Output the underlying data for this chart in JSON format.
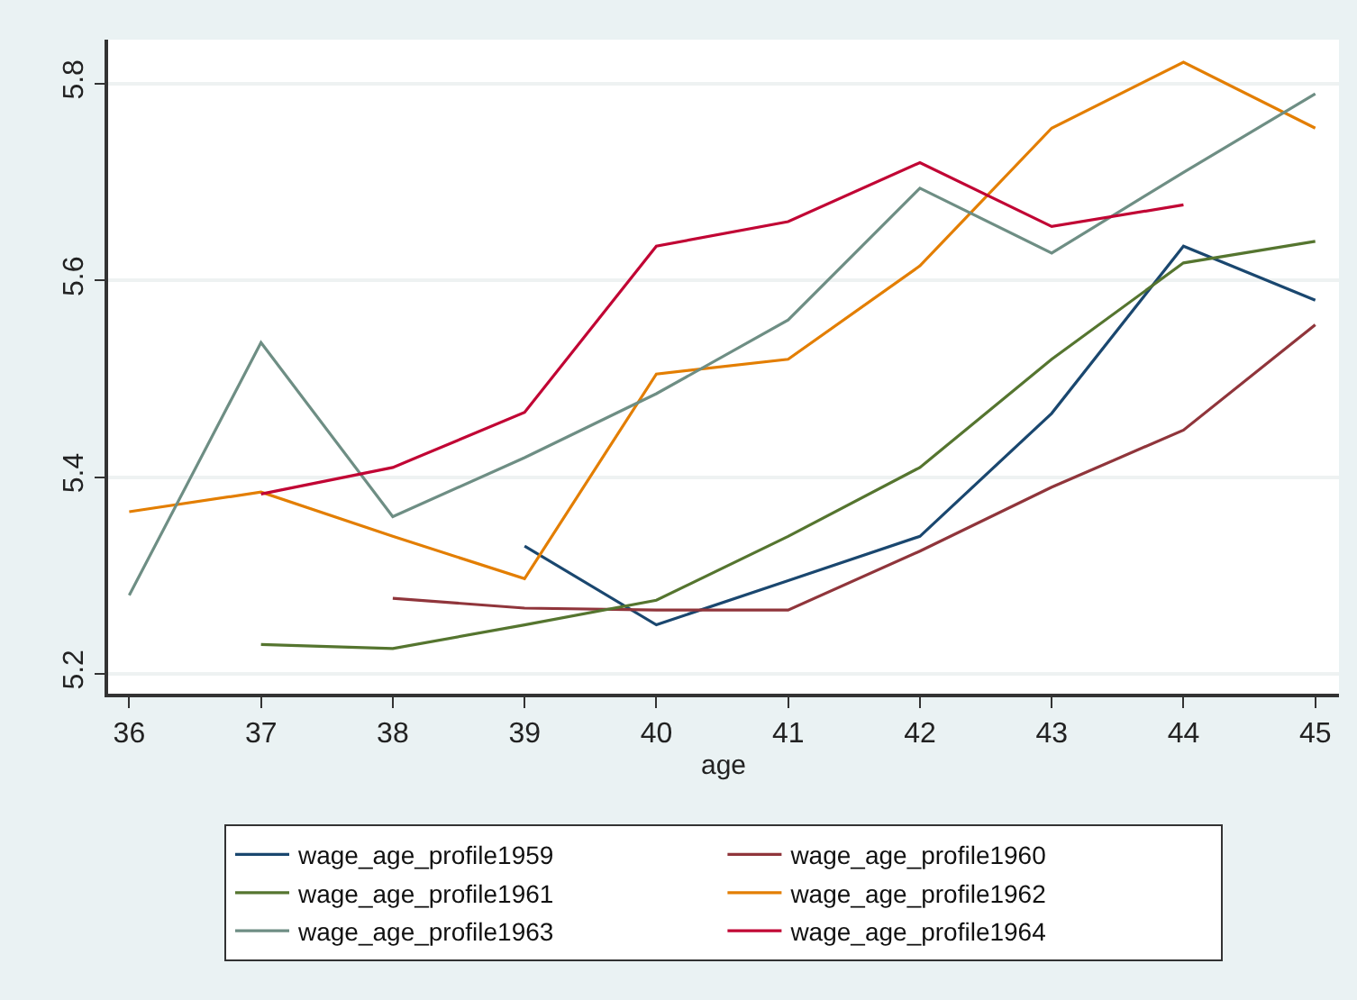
{
  "chart_data": {
    "type": "line",
    "xlabel": "age",
    "x": [
      36,
      37,
      38,
      39,
      40,
      41,
      42,
      43,
      44,
      45
    ],
    "xlim": [
      35.84,
      45.18
    ],
    "xticks": [
      36,
      37,
      38,
      39,
      40,
      41,
      42,
      43,
      44,
      45
    ],
    "ylim": [
      5.18,
      5.845
    ],
    "yticks": [
      5.2,
      5.4,
      5.6,
      5.8
    ],
    "grid": "y",
    "legend": "bottom",
    "marker": "none",
    "line_style": "solid",
    "series": [
      {
        "name": "wage_age_profile1959",
        "color": "#1a476f",
        "values": [
          null,
          null,
          null,
          5.33,
          5.25,
          5.295,
          5.34,
          5.465,
          5.635,
          5.58
        ]
      },
      {
        "name": "wage_age_profile1960",
        "color": "#90353b",
        "values": [
          null,
          null,
          5.277,
          5.267,
          5.265,
          5.265,
          5.325,
          5.39,
          5.448,
          5.555
        ]
      },
      {
        "name": "wage_age_profile1961",
        "color": "#55752f",
        "values": [
          null,
          5.23,
          5.226,
          5.25,
          5.275,
          5.34,
          5.41,
          5.52,
          5.618,
          5.64
        ]
      },
      {
        "name": "wage_age_profile1962",
        "color": "#e37e00",
        "values": [
          5.365,
          5.385,
          5.34,
          5.297,
          5.505,
          5.52,
          5.615,
          5.755,
          5.822,
          5.755
        ]
      },
      {
        "name": "wage_age_profile1963",
        "color": "#6e8e84",
        "values": [
          5.28,
          5.537,
          5.36,
          5.42,
          5.485,
          5.56,
          5.694,
          5.628,
          5.71,
          5.79
        ]
      },
      {
        "name": "wage_age_profile1964",
        "color": "#c10534",
        "values": [
          null,
          5.383,
          5.41,
          5.466,
          5.635,
          5.66,
          5.72,
          5.655,
          5.677,
          null
        ]
      }
    ]
  }
}
